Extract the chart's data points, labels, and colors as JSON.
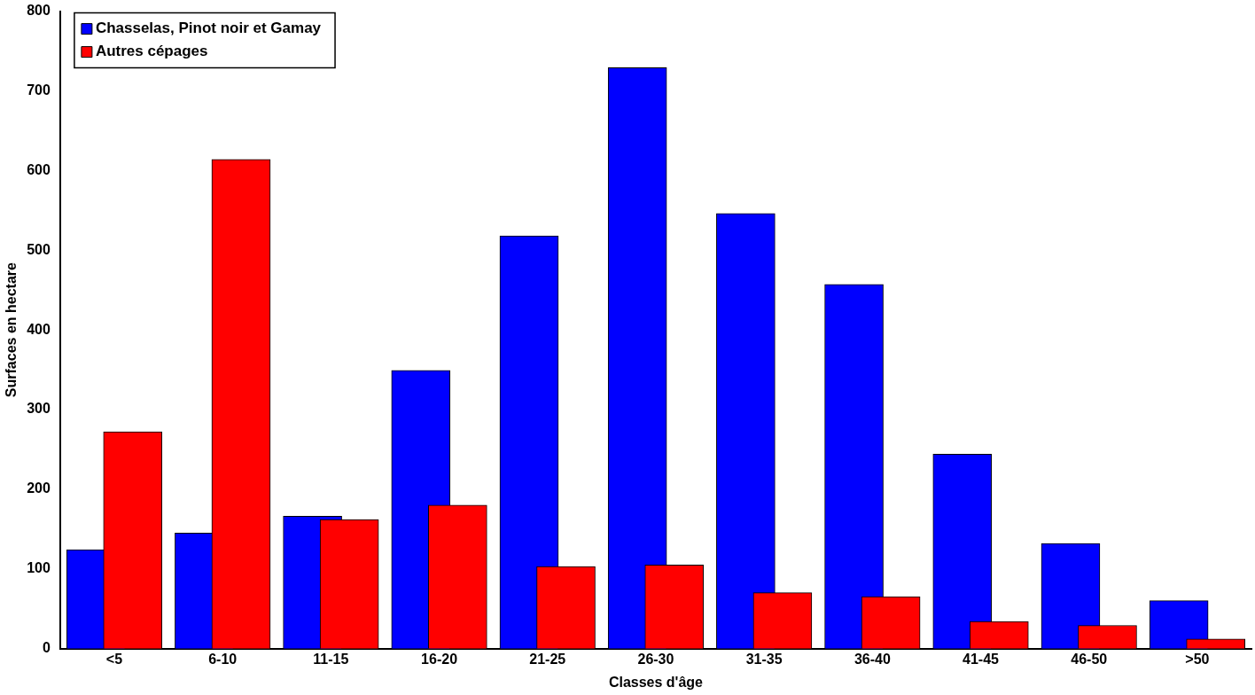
{
  "chart_data": {
    "type": "bar",
    "xlabel": "Classes d'âge",
    "ylabel": "Surfaces en hectare",
    "categories": [
      "<5",
      "6-10",
      "11-15",
      "16-20",
      "21-25",
      "26-30",
      "31-35",
      "36-40",
      "41-45",
      "46-50",
      ">50"
    ],
    "series": [
      {
        "name": "Chasselas, Pinot noir et Gamay",
        "color": "#0000ff",
        "values": [
          124,
          145,
          166,
          349,
          518,
          729,
          546,
          457,
          244,
          132,
          60
        ]
      },
      {
        "name": "Autres cépages",
        "color": "#ff0000",
        "values": [
          272,
          614,
          162,
          180,
          103,
          105,
          70,
          65,
          34,
          29,
          12
        ]
      }
    ],
    "ylim": [
      0,
      800
    ],
    "yticks": [
      0,
      100,
      200,
      300,
      400,
      500,
      600,
      700,
      800
    ],
    "grid": false,
    "legend": "top left"
  }
}
